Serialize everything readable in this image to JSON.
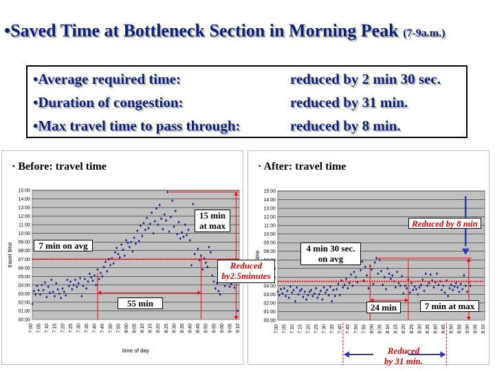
{
  "title": {
    "main": "•Saved Time at Bottleneck Section in Morning Peak",
    "period": "(7-9a.m.)"
  },
  "summary": [
    {
      "label": "•Average required time:",
      "value": "reduced by 2 min 30 sec."
    },
    {
      "label": "•Duration of congestion:",
      "value": "reduced by 31 min."
    },
    {
      "label": "•Max travel time to pass through:",
      "value": "reduced by 8 min."
    }
  ],
  "colors": {
    "title": "#0a1f7a",
    "points": "#1a2a8a",
    "avg_line": "#ff0000",
    "annotation": "#e00000",
    "arrow": "#2a3aa8",
    "plot_bg": "#c0c0c0"
  },
  "chart_data": [
    {
      "type": "scatter",
      "title": "Before: travel time",
      "xlabel": "time of day",
      "ylabel": "travel time",
      "x_ticks": [
        "7:00",
        "7:05",
        "7:10",
        "7:15",
        "7:20",
        "7:25",
        "7:30",
        "7:35",
        "7:40",
        "7:45",
        "7:50",
        "7:55",
        "8:00",
        "8:05",
        "8:10",
        "8:15",
        "8:20",
        "8:25",
        "8:30",
        "8:35",
        "8:40",
        "8:45",
        "8:50",
        "8:55",
        "9:00",
        "9:05",
        "9:10"
      ],
      "y_ticks": [
        "00:00",
        "01:00",
        "02:00",
        "03:00",
        "04:00",
        "05:00",
        "06:00",
        "07:00",
        "08:00",
        "09:00",
        "10:00",
        "11:00",
        "12:00",
        "13:00",
        "14:00",
        "15:00"
      ],
      "xlim": [
        0,
        130
      ],
      "ylim": [
        0,
        15
      ],
      "grid": true,
      "avg_line_y": 7,
      "annotations": {
        "avg": "7 min on avg",
        "max": "15 min\nat max",
        "duration": "55 min"
      },
      "points": [
        [
          0,
          1.8
        ],
        [
          1,
          3.3
        ],
        [
          2,
          2.9
        ],
        [
          3,
          3.9
        ],
        [
          4,
          3.4
        ],
        [
          5,
          2.9
        ],
        [
          6,
          4.0
        ],
        [
          7,
          3.4
        ],
        [
          8,
          4.3
        ],
        [
          9,
          2.6
        ],
        [
          10,
          3.8
        ],
        [
          11,
          3.1
        ],
        [
          12,
          4.6
        ],
        [
          13,
          3.2
        ],
        [
          14,
          2.7
        ],
        [
          15,
          4.2
        ],
        [
          16,
          3.5
        ],
        [
          17,
          3.0
        ],
        [
          18,
          2.5
        ],
        [
          19,
          3.6
        ],
        [
          20,
          3.2
        ],
        [
          21,
          2.8
        ],
        [
          22,
          4.6
        ],
        [
          23,
          3.9
        ],
        [
          24,
          4.4
        ],
        [
          25,
          3.5
        ],
        [
          26,
          4.0
        ],
        [
          27,
          4.6
        ],
        [
          28,
          3.8
        ],
        [
          29,
          4.2
        ],
        [
          30,
          4.8
        ],
        [
          31,
          2.7
        ],
        [
          32,
          3.9
        ],
        [
          33,
          4.7
        ],
        [
          34,
          3.6
        ],
        [
          35,
          4.4
        ],
        [
          36,
          5.3
        ],
        [
          37,
          4.9
        ],
        [
          38,
          4.5
        ],
        [
          39,
          5.1
        ],
        [
          40,
          4.0
        ],
        [
          41,
          5.8
        ],
        [
          42,
          4.7
        ],
        [
          43,
          5.4
        ],
        [
          44,
          5.0
        ],
        [
          45,
          6.1
        ],
        [
          46,
          6.7
        ],
        [
          47,
          5.6
        ],
        [
          48,
          7.0
        ],
        [
          49,
          6.3
        ],
        [
          50,
          7.1
        ],
        [
          51,
          6.5
        ],
        [
          52,
          7.8
        ],
        [
          53,
          8.3
        ],
        [
          54,
          7.6
        ],
        [
          55,
          7.2
        ],
        [
          56,
          8.7
        ],
        [
          57,
          8.1
        ],
        [
          58,
          7.4
        ],
        [
          59,
          9.2
        ],
        [
          60,
          8.9
        ],
        [
          61,
          8.4
        ],
        [
          62,
          9.0
        ],
        [
          63,
          7.9
        ],
        [
          64,
          9.5
        ],
        [
          65,
          8.8
        ],
        [
          66,
          10.3
        ],
        [
          67,
          9.1
        ],
        [
          68,
          10.9
        ],
        [
          69,
          9.7
        ],
        [
          70,
          11.2
        ],
        [
          71,
          10.4
        ],
        [
          72,
          11.8
        ],
        [
          73,
          10.6
        ],
        [
          74,
          11.1
        ],
        [
          75,
          12.4
        ],
        [
          76,
          10.0
        ],
        [
          77,
          11.4
        ],
        [
          78,
          12.9
        ],
        [
          79,
          11.0
        ],
        [
          80,
          13.3
        ],
        [
          81,
          11.7
        ],
        [
          82,
          10.5
        ],
        [
          83,
          12.2
        ],
        [
          84,
          11.5
        ],
        [
          85,
          14.8
        ],
        [
          86,
          10.2
        ],
        [
          87,
          11.9
        ],
        [
          88,
          13.8
        ],
        [
          89,
          10.8
        ],
        [
          90,
          12.6
        ],
        [
          91,
          9.9
        ],
        [
          92,
          11.3
        ],
        [
          93,
          9.4
        ],
        [
          94,
          10.1
        ],
        [
          95,
          9.6
        ],
        [
          96,
          11.0
        ],
        [
          97,
          9.8
        ],
        [
          98,
          10.4
        ],
        [
          99,
          9.2
        ],
        [
          100,
          6.3
        ],
        [
          101,
          13.4
        ],
        [
          102,
          7.6
        ],
        [
          103,
          12.1
        ],
        [
          104,
          8.2
        ],
        [
          105,
          6.9
        ],
        [
          106,
          7.4
        ],
        [
          107,
          5.8
        ],
        [
          108,
          7.1
        ],
        [
          109,
          6.6
        ],
        [
          110,
          6.1
        ],
        [
          111,
          8.4
        ],
        [
          112,
          7.8
        ],
        [
          113,
          5.1
        ],
        [
          114,
          4.4
        ],
        [
          115,
          3.6
        ],
        [
          116,
          4.2
        ],
        [
          117,
          3.3
        ],
        [
          118,
          2.9
        ],
        [
          119,
          4.9
        ],
        [
          120,
          4.6
        ],
        [
          121,
          3.9
        ],
        [
          122,
          4.8
        ],
        [
          123,
          4.3
        ],
        [
          124,
          3.8
        ],
        [
          125,
          4.1
        ],
        [
          126,
          4.5
        ],
        [
          127,
          3.7
        ],
        [
          128,
          4.6
        ],
        [
          129,
          1.0
        ]
      ]
    },
    {
      "type": "scatter",
      "title": "After: travel time",
      "xlabel": "",
      "ylabel": "time",
      "x_ticks": [
        "7:00",
        "7:05",
        "7:10",
        "7:15",
        "7:20",
        "7:25",
        "7:30",
        "7:35",
        "7:40",
        "7:45",
        "7:50",
        "7:55",
        "8:00",
        "8:05",
        "8:10",
        "8:15",
        "8:20",
        "8:25",
        "8:30",
        "8:35",
        "8:40",
        "8:45",
        "8:50",
        "8:55",
        "9:00",
        "9:05",
        "9:10"
      ],
      "y_ticks": [
        "00:00",
        "01:00",
        "02:00",
        "03:00",
        "04:00",
        "05:00",
        "06:00",
        "07:00",
        "08:00",
        "09:00",
        "10:00",
        "11:00",
        "12:00",
        "13:00",
        "14:00",
        "15:00"
      ],
      "xlim": [
        0,
        130
      ],
      "ylim": [
        0,
        15
      ],
      "grid": true,
      "avg_line_y": 4.5,
      "annotations": {
        "avg": "4 min 30 sec.\non avg",
        "max": "7 min at max",
        "duration": "24 min",
        "reduced_max": "Reduced by 8 min",
        "reduced_avg": "Reduced\nby2.5minutes",
        "reduced_duration": "Reduced\nby 31 min."
      },
      "points": [
        [
          0,
          3.3
        ],
        [
          1,
          2.9
        ],
        [
          2,
          3.6
        ],
        [
          3,
          3.1
        ],
        [
          4,
          3.7
        ],
        [
          5,
          2.8
        ],
        [
          6,
          3.4
        ],
        [
          7,
          2.6
        ],
        [
          8,
          3.9
        ],
        [
          9,
          3.2
        ],
        [
          10,
          3.5
        ],
        [
          11,
          2.2
        ],
        [
          12,
          3.8
        ],
        [
          13,
          3.0
        ],
        [
          14,
          3.4
        ],
        [
          15,
          3.6
        ],
        [
          16,
          2.7
        ],
        [
          17,
          3.3
        ],
        [
          18,
          2.4
        ],
        [
          19,
          2.9
        ],
        [
          20,
          3.3
        ],
        [
          21,
          3.5
        ],
        [
          22,
          2.8
        ],
        [
          23,
          3.1
        ],
        [
          24,
          3.7
        ],
        [
          25,
          2.6
        ],
        [
          26,
          3.0
        ],
        [
          27,
          3.4
        ],
        [
          28,
          2.4
        ],
        [
          29,
          3.8
        ],
        [
          30,
          3.2
        ],
        [
          31,
          3.5
        ],
        [
          32,
          2.9
        ],
        [
          33,
          3.9
        ],
        [
          34,
          2.2
        ],
        [
          35,
          3.5
        ],
        [
          36,
          2.8
        ],
        [
          37,
          3.6
        ],
        [
          38,
          4.2
        ],
        [
          39,
          2.9
        ],
        [
          40,
          4.6
        ],
        [
          41,
          3.8
        ],
        [
          42,
          4.1
        ],
        [
          43,
          4.8
        ],
        [
          44,
          3.7
        ],
        [
          45,
          4.3
        ],
        [
          46,
          5.3
        ],
        [
          47,
          4.0
        ],
        [
          48,
          5.6
        ],
        [
          49,
          5.0
        ],
        [
          50,
          4.4
        ],
        [
          51,
          6.5
        ],
        [
          52,
          5.8
        ],
        [
          53,
          6.8
        ],
        [
          54,
          4.6
        ],
        [
          55,
          6.2
        ],
        [
          56,
          5.2
        ],
        [
          57,
          3.7
        ],
        [
          58,
          6.3
        ],
        [
          59,
          5.9
        ],
        [
          60,
          4.2
        ],
        [
          61,
          6.7
        ],
        [
          62,
          7.2
        ],
        [
          63,
          5.4
        ],
        [
          64,
          7.0
        ],
        [
          65,
          5.7
        ],
        [
          66,
          4.1
        ],
        [
          67,
          5.0
        ],
        [
          68,
          3.6
        ],
        [
          69,
          6.0
        ],
        [
          70,
          5.4
        ],
        [
          71,
          4.8
        ],
        [
          72,
          5.2
        ],
        [
          73,
          4.5
        ],
        [
          74,
          3.8
        ],
        [
          75,
          5.6
        ],
        [
          76,
          4.3
        ],
        [
          77,
          4.0
        ],
        [
          78,
          5.1
        ],
        [
          79,
          3.1
        ],
        [
          80,
          4.0
        ],
        [
          81,
          3.7
        ],
        [
          82,
          4.7
        ],
        [
          83,
          3.2
        ],
        [
          84,
          4.3
        ],
        [
          85,
          3.5
        ],
        [
          86,
          3.9
        ],
        [
          87,
          3.6
        ],
        [
          88,
          3.0
        ],
        [
          89,
          3.8
        ],
        [
          90,
          4.1
        ],
        [
          91,
          4.7
        ],
        [
          92,
          3.4
        ],
        [
          93,
          5.4
        ],
        [
          94,
          4.0
        ],
        [
          95,
          4.3
        ],
        [
          96,
          5.3
        ],
        [
          97,
          4.6
        ],
        [
          98,
          3.8
        ],
        [
          99,
          4.4
        ],
        [
          100,
          5.4
        ],
        [
          101,
          4.1
        ],
        [
          102,
          4.5
        ],
        [
          103,
          3.5
        ],
        [
          104,
          4.0
        ],
        [
          105,
          3.2
        ],
        [
          106,
          4.6
        ],
        [
          107,
          2.8
        ],
        [
          108,
          3.7
        ],
        [
          109,
          4.1
        ],
        [
          110,
          3.5
        ],
        [
          111,
          3.9
        ],
        [
          112,
          4.3
        ],
        [
          113,
          3.8
        ],
        [
          114,
          3.3
        ],
        [
          115,
          4.2
        ],
        [
          116,
          3.6
        ],
        [
          117,
          5.2
        ],
        [
          118,
          4.0
        ],
        [
          119,
          3.3
        ],
        [
          120,
          4.4
        ],
        [
          121,
          4.0
        ]
      ]
    }
  ]
}
